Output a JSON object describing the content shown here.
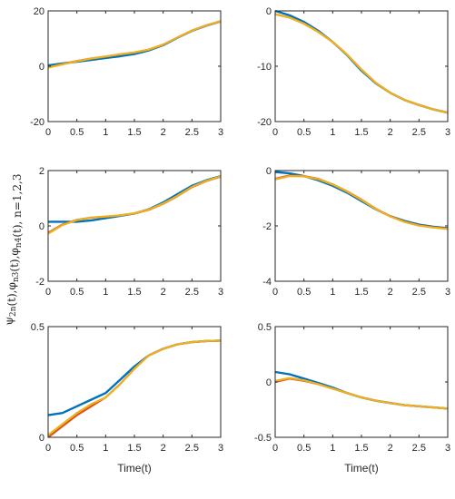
{
  "figure": {
    "ylabel": "ψ2n(t),φn3(t),φn4(t), n=1,2,3",
    "ylabel_parts": [
      {
        "t": "ψ",
        "sub": false
      },
      {
        "t": "2n",
        "sub": true
      },
      {
        "t": "(t),",
        "sub": false
      },
      {
        "t": "φ",
        "sub": false
      },
      {
        "t": "n3",
        "sub": true
      },
      {
        "t": "(t),",
        "sub": false
      },
      {
        "t": "φ",
        "sub": false
      },
      {
        "t": "n4",
        "sub": true
      },
      {
        "t": "(t), n=1,2,3",
        "sub": false
      }
    ],
    "colors": {
      "series_blue": "#0072BD",
      "series_orange": "#D95319",
      "series_yellow": "#EDB120",
      "axis": "#262626"
    }
  },
  "chart_data": [
    {
      "type": "line",
      "panel": "top-left",
      "xlabel": "",
      "ylim": [
        -20,
        20
      ],
      "xlim": [
        0,
        3
      ],
      "xticks": [
        0,
        0.5,
        1,
        1.5,
        2,
        2.5,
        3
      ],
      "xticklabels": [
        "0",
        "0.5",
        "1",
        "1.5",
        "2",
        "2.5",
        "3"
      ],
      "yticks": [
        -20,
        0,
        20
      ],
      "yticklabels": [
        "-20",
        "0",
        "20"
      ],
      "x": [
        0,
        0.25,
        0.5,
        0.75,
        1,
        1.25,
        1.5,
        1.75,
        2,
        2.25,
        2.5,
        2.75,
        3
      ],
      "series": [
        {
          "color": "#0072BD",
          "values": [
            0.3,
            1.0,
            1.6,
            2.3,
            3.0,
            3.6,
            4.4,
            5.7,
            7.6,
            10.3,
            12.8,
            14.7,
            16.2
          ]
        },
        {
          "color": "#D95319",
          "values": [
            -0.4,
            0.8,
            1.9,
            2.8,
            3.5,
            4.3,
            5.0,
            6.0,
            7.8,
            10.4,
            12.9,
            14.8,
            16.3
          ]
        },
        {
          "color": "#EDB120",
          "values": [
            -0.5,
            0.7,
            1.8,
            2.8,
            3.5,
            4.3,
            5.0,
            6.0,
            7.8,
            10.4,
            12.9,
            14.8,
            16.3
          ]
        }
      ]
    },
    {
      "type": "line",
      "panel": "top-right",
      "xlabel": "",
      "ylim": [
        -20,
        0
      ],
      "xlim": [
        0,
        3
      ],
      "xticks": [
        0,
        0.5,
        1,
        1.5,
        2,
        2.5,
        3
      ],
      "xticklabels": [
        "0",
        "0.5",
        "1",
        "1.5",
        "2",
        "2.5",
        "3"
      ],
      "yticks": [
        -20,
        -10,
        0
      ],
      "yticklabels": [
        "-20",
        "-10",
        "0"
      ],
      "x": [
        0,
        0.25,
        0.5,
        0.75,
        1,
        1.25,
        1.5,
        1.75,
        2,
        2.25,
        2.5,
        2.75,
        3
      ],
      "series": [
        {
          "color": "#0072BD",
          "values": [
            0.0,
            -0.8,
            -2.0,
            -3.6,
            -5.6,
            -8.0,
            -10.8,
            -13.1,
            -14.8,
            -16.1,
            -17.0,
            -17.8,
            -18.4
          ]
        },
        {
          "color": "#D95319",
          "values": [
            -0.6,
            -1.2,
            -2.3,
            -3.8,
            -5.6,
            -7.9,
            -10.6,
            -13.0,
            -14.8,
            -16.1,
            -17.0,
            -17.8,
            -18.4
          ]
        },
        {
          "color": "#EDB120",
          "values": [
            -0.6,
            -1.2,
            -2.3,
            -3.8,
            -5.6,
            -7.9,
            -10.6,
            -13.0,
            -14.8,
            -16.1,
            -17.0,
            -17.8,
            -18.4
          ]
        }
      ]
    },
    {
      "type": "line",
      "panel": "middle-left",
      "xlabel": "",
      "ylim": [
        -2,
        2
      ],
      "xlim": [
        0,
        3
      ],
      "xticks": [
        0,
        0.5,
        1,
        1.5,
        2,
        2.5,
        3
      ],
      "xticklabels": [
        "0",
        "0.5",
        "1",
        "1.5",
        "2",
        "2.5",
        "3"
      ],
      "yticks": [
        -2,
        0,
        2
      ],
      "yticklabels": [
        "-2",
        "0",
        "2"
      ],
      "x": [
        0,
        0.25,
        0.5,
        0.75,
        1,
        1.25,
        1.5,
        1.75,
        2,
        2.25,
        2.5,
        2.75,
        3
      ],
      "series": [
        {
          "color": "#0072BD",
          "values": [
            0.15,
            0.15,
            0.15,
            0.2,
            0.28,
            0.36,
            0.45,
            0.6,
            0.85,
            1.15,
            1.45,
            1.65,
            1.8
          ]
        },
        {
          "color": "#D95319",
          "values": [
            -0.25,
            0.05,
            0.22,
            0.3,
            0.33,
            0.38,
            0.45,
            0.58,
            0.8,
            1.08,
            1.4,
            1.62,
            1.78
          ]
        },
        {
          "color": "#EDB120",
          "values": [
            -0.28,
            0.03,
            0.21,
            0.3,
            0.34,
            0.38,
            0.46,
            0.59,
            0.81,
            1.09,
            1.41,
            1.63,
            1.79
          ]
        }
      ]
    },
    {
      "type": "line",
      "panel": "middle-right",
      "xlabel": "",
      "ylim": [
        -4,
        0
      ],
      "xlim": [
        0,
        3
      ],
      "xticks": [
        0,
        0.5,
        1,
        1.5,
        2,
        2.5,
        3
      ],
      "xticklabels": [
        "0",
        "0.5",
        "1",
        "1.5",
        "2",
        "2.5",
        "3"
      ],
      "yticks": [
        -4,
        -2,
        0
      ],
      "yticklabels": [
        "-4",
        "-2",
        "0"
      ],
      "x": [
        0,
        0.25,
        0.5,
        0.75,
        1,
        1.25,
        1.5,
        1.75,
        2,
        2.25,
        2.5,
        2.75,
        3
      ],
      "series": [
        {
          "color": "#0072BD",
          "values": [
            -0.05,
            -0.1,
            -0.2,
            -0.35,
            -0.55,
            -0.8,
            -1.1,
            -1.4,
            -1.65,
            -1.82,
            -1.95,
            -2.03,
            -2.08
          ]
        },
        {
          "color": "#D95319",
          "values": [
            -0.3,
            -0.18,
            -0.2,
            -0.3,
            -0.5,
            -0.75,
            -1.05,
            -1.38,
            -1.65,
            -1.85,
            -1.98,
            -2.05,
            -2.1
          ]
        },
        {
          "color": "#EDB120",
          "values": [
            -0.32,
            -0.2,
            -0.21,
            -0.31,
            -0.5,
            -0.76,
            -1.06,
            -1.39,
            -1.66,
            -1.86,
            -1.99,
            -2.06,
            -2.11
          ]
        }
      ]
    },
    {
      "type": "line",
      "panel": "bottom-left",
      "xlabel": "Time(t)",
      "ylim": [
        0,
        0.5
      ],
      "xlim": [
        0,
        3
      ],
      "xticks": [
        0,
        0.5,
        1,
        1.5,
        2,
        2.5,
        3
      ],
      "xticklabels": [
        "0",
        "0.5",
        "1",
        "1.5",
        "2",
        "2.5",
        "3"
      ],
      "yticks": [
        0,
        0.5
      ],
      "yticklabels": [
        "0",
        "0.5"
      ],
      "x": [
        0,
        0.25,
        0.5,
        0.75,
        1,
        1.25,
        1.5,
        1.75,
        2,
        2.25,
        2.5,
        2.75,
        3
      ],
      "series": [
        {
          "color": "#0072BD",
          "values": [
            0.1,
            0.11,
            0.14,
            0.17,
            0.2,
            0.26,
            0.32,
            0.37,
            0.4,
            0.42,
            0.43,
            0.435,
            0.437
          ]
        },
        {
          "color": "#D95319",
          "values": [
            0.0,
            0.05,
            0.1,
            0.14,
            0.18,
            0.24,
            0.31,
            0.37,
            0.4,
            0.42,
            0.43,
            0.435,
            0.437
          ]
        },
        {
          "color": "#EDB120",
          "values": [
            0.01,
            0.06,
            0.11,
            0.15,
            0.18,
            0.24,
            0.31,
            0.37,
            0.4,
            0.42,
            0.43,
            0.435,
            0.437
          ]
        }
      ]
    },
    {
      "type": "line",
      "panel": "bottom-right",
      "xlabel": "Time(t)",
      "ylim": [
        -0.5,
        0.5
      ],
      "xlim": [
        0,
        3
      ],
      "xticks": [
        0,
        0.5,
        1,
        1.5,
        2,
        2.5,
        3
      ],
      "xticklabels": [
        "0",
        "0.5",
        "1",
        "1.5",
        "2",
        "2.5",
        "3"
      ],
      "yticks": [
        -0.5,
        0,
        0.5
      ],
      "yticklabels": [
        "-0.5",
        "0",
        "0.5"
      ],
      "x": [
        0,
        0.25,
        0.5,
        0.75,
        1,
        1.25,
        1.5,
        1.75,
        2,
        2.25,
        2.5,
        2.75,
        3
      ],
      "series": [
        {
          "color": "#0072BD",
          "values": [
            0.09,
            0.07,
            0.03,
            -0.01,
            -0.05,
            -0.1,
            -0.14,
            -0.17,
            -0.19,
            -0.21,
            -0.22,
            -0.23,
            -0.24
          ]
        },
        {
          "color": "#D95319",
          "values": [
            0.0,
            0.03,
            0.01,
            -0.02,
            -0.06,
            -0.1,
            -0.14,
            -0.17,
            -0.19,
            -0.21,
            -0.22,
            -0.23,
            -0.24
          ]
        },
        {
          "color": "#EDB120",
          "values": [
            0.01,
            0.035,
            0.015,
            -0.02,
            -0.06,
            -0.1,
            -0.14,
            -0.17,
            -0.19,
            -0.21,
            -0.22,
            -0.23,
            -0.24
          ]
        }
      ]
    }
  ]
}
